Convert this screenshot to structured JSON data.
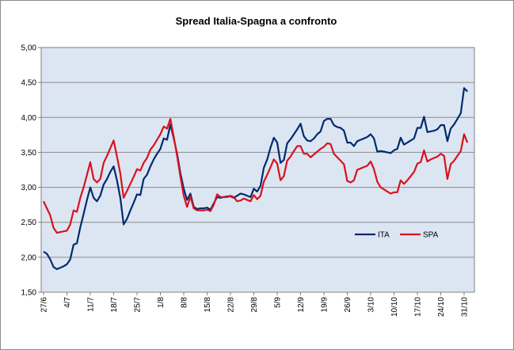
{
  "chart_data": {
    "type": "line",
    "title": "Spread Italia-Spagna a confronto",
    "xlabel": "",
    "ylabel": "",
    "ylim": [
      1.5,
      5.0
    ],
    "y_ticks": [
      "1,50",
      "2,00",
      "2,50",
      "3,00",
      "3,50",
      "4,00",
      "4,50",
      "5,00"
    ],
    "x_range": [
      0,
      126
    ],
    "x_ticks": [
      {
        "label": "27/6",
        "x": 0
      },
      {
        "label": "4/7",
        "x": 7
      },
      {
        "label": "11/7",
        "x": 14
      },
      {
        "label": "18/7",
        "x": 21
      },
      {
        "label": "25/7",
        "x": 28
      },
      {
        "label": "1/8",
        "x": 35
      },
      {
        "label": "8/8",
        "x": 42
      },
      {
        "label": "15/8",
        "x": 49
      },
      {
        "label": "22/8",
        "x": 56
      },
      {
        "label": "29/8",
        "x": 63
      },
      {
        "label": "5/9",
        "x": 70
      },
      {
        "label": "12/9",
        "x": 77
      },
      {
        "label": "19/9",
        "x": 84
      },
      {
        "label": "26/9",
        "x": 91
      },
      {
        "label": "3/10",
        "x": 98
      },
      {
        "label": "10/10",
        "x": 105
      },
      {
        "label": "17/10",
        "x": 112
      },
      {
        "label": "24/10",
        "x": 119
      },
      {
        "label": "31/10",
        "x": 126
      }
    ],
    "legend_position": "center-right",
    "series": [
      {
        "name": "ITA",
        "color": "#002a6e",
        "points": [
          [
            0,
            2.08
          ],
          [
            1,
            2.05
          ],
          [
            2,
            1.97
          ],
          [
            3,
            1.86
          ],
          [
            4,
            1.83
          ],
          [
            5,
            1.85
          ],
          [
            6,
            1.87
          ],
          [
            7,
            1.9
          ],
          [
            8,
            1.97
          ],
          [
            9,
            2.18
          ],
          [
            10,
            2.2
          ],
          [
            11,
            2.43
          ],
          [
            12,
            2.62
          ],
          [
            13,
            2.82
          ],
          [
            14,
            3.0
          ],
          [
            15,
            2.85
          ],
          [
            16,
            2.8
          ],
          [
            17,
            2.88
          ],
          [
            18,
            3.04
          ],
          [
            19,
            3.12
          ],
          [
            20,
            3.22
          ],
          [
            21,
            3.3
          ],
          [
            22,
            3.1
          ],
          [
            23,
            2.85
          ],
          [
            24,
            2.47
          ],
          [
            25,
            2.55
          ],
          [
            26,
            2.67
          ],
          [
            27,
            2.78
          ],
          [
            28,
            2.9
          ],
          [
            29,
            2.89
          ],
          [
            30,
            3.12
          ],
          [
            31,
            3.18
          ],
          [
            32,
            3.3
          ],
          [
            33,
            3.4
          ],
          [
            34,
            3.48
          ],
          [
            35,
            3.55
          ],
          [
            36,
            3.7
          ],
          [
            37,
            3.68
          ],
          [
            38,
            3.9
          ],
          [
            39,
            3.7
          ],
          [
            40,
            3.48
          ],
          [
            41,
            3.2
          ],
          [
            42,
            2.98
          ],
          [
            43,
            2.82
          ],
          [
            44,
            2.91
          ],
          [
            45,
            2.72
          ],
          [
            46,
            2.69
          ],
          [
            47,
            2.7
          ],
          [
            48,
            2.7
          ],
          [
            49,
            2.71
          ],
          [
            50,
            2.68
          ],
          [
            51,
            2.77
          ],
          [
            52,
            2.86
          ],
          [
            53,
            2.85
          ],
          [
            54,
            2.86
          ],
          [
            55,
            2.87
          ],
          [
            56,
            2.87
          ],
          [
            57,
            2.85
          ],
          [
            58,
            2.88
          ],
          [
            59,
            2.91
          ],
          [
            60,
            2.9
          ],
          [
            61,
            2.88
          ],
          [
            62,
            2.86
          ],
          [
            63,
            2.98
          ],
          [
            64,
            2.94
          ],
          [
            65,
            3.02
          ],
          [
            66,
            3.28
          ],
          [
            67,
            3.4
          ],
          [
            68,
            3.57
          ],
          [
            69,
            3.71
          ],
          [
            70,
            3.64
          ],
          [
            71,
            3.35
          ],
          [
            72,
            3.39
          ],
          [
            73,
            3.63
          ],
          [
            74,
            3.69
          ],
          [
            75,
            3.76
          ],
          [
            76,
            3.83
          ],
          [
            77,
            3.91
          ],
          [
            78,
            3.73
          ],
          [
            79,
            3.67
          ],
          [
            80,
            3.66
          ],
          [
            81,
            3.7
          ],
          [
            82,
            3.76
          ],
          [
            83,
            3.8
          ],
          [
            84,
            3.95
          ],
          [
            85,
            3.98
          ],
          [
            86,
            3.98
          ],
          [
            87,
            3.89
          ],
          [
            88,
            3.86
          ],
          [
            89,
            3.85
          ],
          [
            90,
            3.81
          ],
          [
            91,
            3.64
          ],
          [
            92,
            3.64
          ],
          [
            93,
            3.59
          ],
          [
            94,
            3.66
          ],
          [
            95,
            3.68
          ],
          [
            96,
            3.7
          ],
          [
            97,
            3.72
          ],
          [
            98,
            3.76
          ],
          [
            99,
            3.7
          ],
          [
            100,
            3.51
          ],
          [
            101,
            3.52
          ],
          [
            102,
            3.51
          ],
          [
            103,
            3.5
          ],
          [
            104,
            3.49
          ],
          [
            105,
            3.53
          ],
          [
            106,
            3.55
          ],
          [
            107,
            3.71
          ],
          [
            108,
            3.61
          ],
          [
            109,
            3.64
          ],
          [
            110,
            3.67
          ],
          [
            111,
            3.7
          ],
          [
            112,
            3.85
          ],
          [
            113,
            3.85
          ],
          [
            114,
            4.01
          ],
          [
            115,
            3.79
          ],
          [
            116,
            3.8
          ],
          [
            117,
            3.81
          ],
          [
            118,
            3.83
          ],
          [
            119,
            3.89
          ],
          [
            120,
            3.89
          ],
          [
            121,
            3.66
          ],
          [
            122,
            3.84
          ],
          [
            123,
            3.9
          ],
          [
            124,
            3.98
          ],
          [
            125,
            4.06
          ],
          [
            126,
            4.42
          ],
          [
            127,
            4.37
          ]
        ]
      },
      {
        "name": "SPA",
        "color": "#d8121e",
        "points": [
          [
            0,
            2.8
          ],
          [
            1,
            2.7
          ],
          [
            2,
            2.6
          ],
          [
            3,
            2.42
          ],
          [
            4,
            2.35
          ],
          [
            5,
            2.36
          ],
          [
            6,
            2.37
          ],
          [
            7,
            2.38
          ],
          [
            8,
            2.47
          ],
          [
            9,
            2.67
          ],
          [
            10,
            2.65
          ],
          [
            11,
            2.85
          ],
          [
            12,
            3.0
          ],
          [
            13,
            3.18
          ],
          [
            14,
            3.36
          ],
          [
            15,
            3.12
          ],
          [
            16,
            3.07
          ],
          [
            17,
            3.12
          ],
          [
            18,
            3.35
          ],
          [
            19,
            3.45
          ],
          [
            20,
            3.56
          ],
          [
            21,
            3.67
          ],
          [
            22,
            3.44
          ],
          [
            23,
            3.2
          ],
          [
            24,
            2.85
          ],
          [
            25,
            2.95
          ],
          [
            26,
            3.05
          ],
          [
            27,
            3.15
          ],
          [
            28,
            3.26
          ],
          [
            29,
            3.24
          ],
          [
            30,
            3.35
          ],
          [
            31,
            3.42
          ],
          [
            32,
            3.54
          ],
          [
            33,
            3.6
          ],
          [
            34,
            3.68
          ],
          [
            35,
            3.76
          ],
          [
            36,
            3.87
          ],
          [
            37,
            3.84
          ],
          [
            38,
            3.98
          ],
          [
            39,
            3.72
          ],
          [
            40,
            3.45
          ],
          [
            41,
            3.15
          ],
          [
            42,
            2.88
          ],
          [
            43,
            2.72
          ],
          [
            44,
            2.87
          ],
          [
            45,
            2.7
          ],
          [
            46,
            2.67
          ],
          [
            47,
            2.67
          ],
          [
            48,
            2.67
          ],
          [
            49,
            2.68
          ],
          [
            50,
            2.66
          ],
          [
            51,
            2.75
          ],
          [
            52,
            2.9
          ],
          [
            53,
            2.86
          ],
          [
            54,
            2.86
          ],
          [
            55,
            2.86
          ],
          [
            56,
            2.88
          ],
          [
            57,
            2.86
          ],
          [
            58,
            2.8
          ],
          [
            59,
            2.81
          ],
          [
            60,
            2.84
          ],
          [
            61,
            2.82
          ],
          [
            62,
            2.8
          ],
          [
            63,
            2.89
          ],
          [
            64,
            2.83
          ],
          [
            65,
            2.88
          ],
          [
            66,
            3.08
          ],
          [
            67,
            3.18
          ],
          [
            68,
            3.29
          ],
          [
            69,
            3.4
          ],
          [
            70,
            3.34
          ],
          [
            71,
            3.1
          ],
          [
            72,
            3.16
          ],
          [
            73,
            3.38
          ],
          [
            74,
            3.44
          ],
          [
            75,
            3.52
          ],
          [
            76,
            3.59
          ],
          [
            77,
            3.59
          ],
          [
            78,
            3.48
          ],
          [
            79,
            3.48
          ],
          [
            80,
            3.43
          ],
          [
            81,
            3.47
          ],
          [
            82,
            3.51
          ],
          [
            83,
            3.55
          ],
          [
            84,
            3.58
          ],
          [
            85,
            3.63
          ],
          [
            86,
            3.62
          ],
          [
            87,
            3.48
          ],
          [
            88,
            3.43
          ],
          [
            89,
            3.38
          ],
          [
            90,
            3.33
          ],
          [
            91,
            3.09
          ],
          [
            92,
            3.07
          ],
          [
            93,
            3.1
          ],
          [
            94,
            3.25
          ],
          [
            95,
            3.27
          ],
          [
            96,
            3.29
          ],
          [
            97,
            3.31
          ],
          [
            98,
            3.37
          ],
          [
            99,
            3.26
          ],
          [
            100,
            3.08
          ],
          [
            101,
            3.0
          ],
          [
            102,
            2.97
          ],
          [
            103,
            2.94
          ],
          [
            104,
            2.91
          ],
          [
            105,
            2.93
          ],
          [
            106,
            2.93
          ],
          [
            107,
            3.1
          ],
          [
            108,
            3.05
          ],
          [
            109,
            3.1
          ],
          [
            110,
            3.16
          ],
          [
            111,
            3.22
          ],
          [
            112,
            3.34
          ],
          [
            113,
            3.36
          ],
          [
            114,
            3.53
          ],
          [
            115,
            3.37
          ],
          [
            116,
            3.4
          ],
          [
            117,
            3.42
          ],
          [
            118,
            3.44
          ],
          [
            119,
            3.48
          ],
          [
            120,
            3.45
          ],
          [
            121,
            3.12
          ],
          [
            122,
            3.33
          ],
          [
            123,
            3.38
          ],
          [
            124,
            3.45
          ],
          [
            125,
            3.52
          ],
          [
            126,
            3.76
          ],
          [
            127,
            3.64
          ]
        ]
      }
    ]
  }
}
